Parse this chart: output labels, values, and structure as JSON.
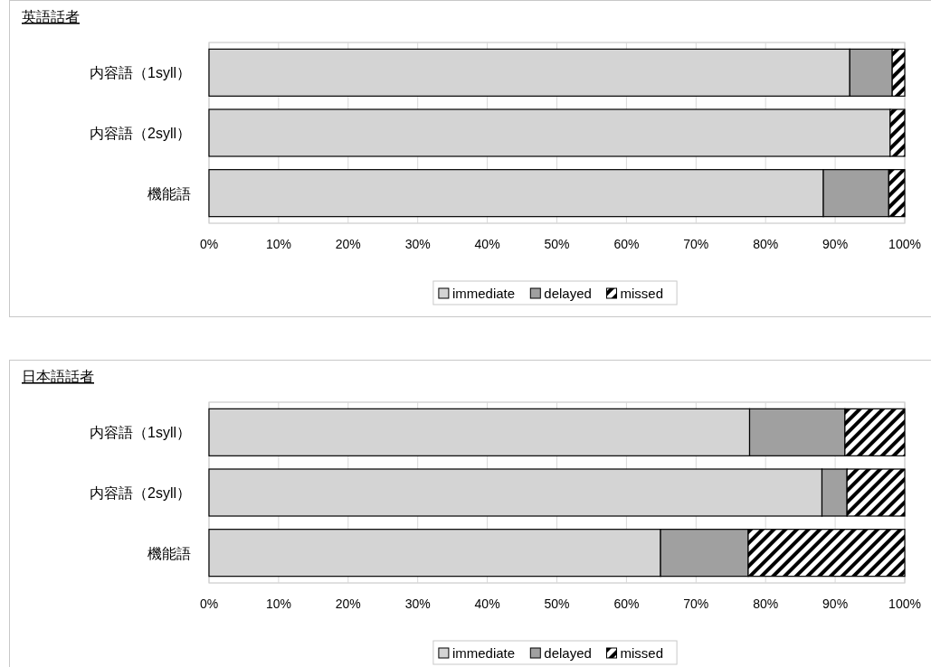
{
  "chart_data": [
    {
      "type": "bar",
      "title": "英語話者",
      "orientation": "horizontal",
      "stacked": true,
      "categories": [
        "内容語（1syll）",
        "内容語（2syll）",
        "機能語"
      ],
      "series": [
        {
          "name": "immediate",
          "color": "#d4d4d4",
          "values": [
            92.1,
            97.9,
            88.3
          ]
        },
        {
          "name": "delayed",
          "color": "#a0a0a0",
          "values": [
            6.1,
            0,
            9.4
          ]
        },
        {
          "name": "missed",
          "color": "#000000",
          "values": [
            1.8,
            2.1,
            2.3
          ]
        }
      ],
      "xlim": [
        0,
        100
      ],
      "xticks": [
        {
          "value": 0,
          "label": "0%"
        },
        {
          "value": 10,
          "label": "10%"
        },
        {
          "value": 20,
          "label": "20%"
        },
        {
          "value": 30,
          "label": "30%"
        },
        {
          "value": 40,
          "label": "40%"
        },
        {
          "value": 50,
          "label": "50%"
        },
        {
          "value": 60,
          "label": "60%"
        },
        {
          "value": 70,
          "label": "70%"
        },
        {
          "value": 80,
          "label": "80%"
        },
        {
          "value": 90,
          "label": "90%"
        },
        {
          "value": 100,
          "label": "100%"
        }
      ],
      "grid": "x",
      "legend": "bottom"
    },
    {
      "type": "bar",
      "title": "日本語話者",
      "orientation": "horizontal",
      "stacked": true,
      "categories": [
        "内容語（1syll）",
        "内容語（2syll）",
        "機能語"
      ],
      "series": [
        {
          "name": "immediate",
          "color": "#d4d4d4",
          "values": [
            77.7,
            88.1,
            64.9
          ]
        },
        {
          "name": "delayed",
          "color": "#a0a0a0",
          "values": [
            13.7,
            3.6,
            12.6
          ]
        },
        {
          "name": "missed",
          "color": "#000000",
          "values": [
            8.6,
            8.3,
            22.5
          ]
        }
      ],
      "xlim": [
        0,
        100
      ],
      "xticks": [
        {
          "value": 0,
          "label": "0%"
        },
        {
          "value": 10,
          "label": "10%"
        },
        {
          "value": 20,
          "label": "20%"
        },
        {
          "value": 30,
          "label": "30%"
        },
        {
          "value": 40,
          "label": "40%"
        },
        {
          "value": 50,
          "label": "50%"
        },
        {
          "value": 60,
          "label": "60%"
        },
        {
          "value": 70,
          "label": "70%"
        },
        {
          "value": 80,
          "label": "80%"
        },
        {
          "value": 90,
          "label": "90%"
        },
        {
          "value": 100,
          "label": "100%"
        }
      ],
      "grid": "x",
      "legend": "bottom"
    }
  ]
}
